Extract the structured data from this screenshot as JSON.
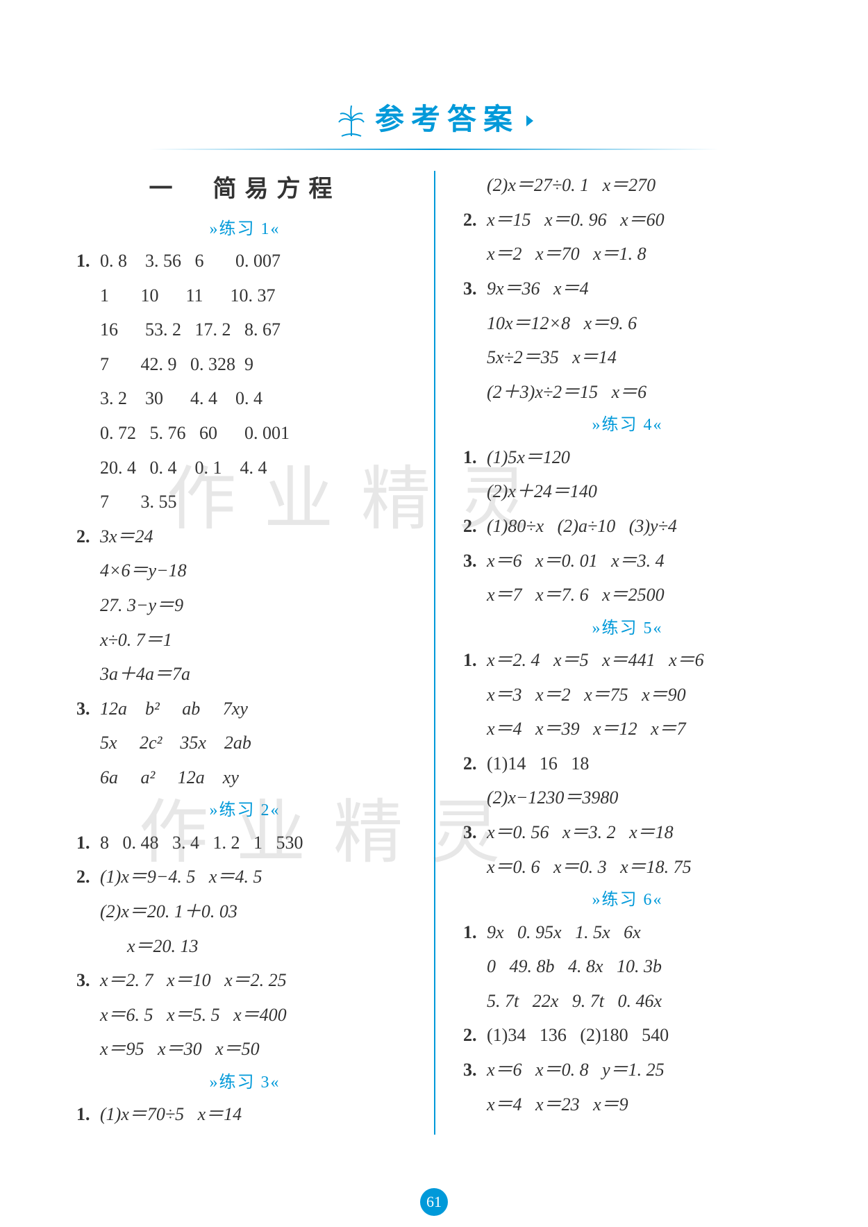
{
  "header": {
    "title": "参考答案",
    "underline_color": "#0099d9"
  },
  "pageNumber": "61",
  "watermark": "作业精灵",
  "leftColumn": {
    "sectionTitle": "一　简易方程",
    "blocks": [
      {
        "type": "exercise",
        "label": "»练习 1«"
      },
      {
        "type": "line",
        "num": "1.",
        "text": "0. 8    3. 56   6       0. 007"
      },
      {
        "type": "line",
        "num": "",
        "text": "1       10      11      10. 37"
      },
      {
        "type": "line",
        "num": "",
        "text": "16      53. 2   17. 2   8. 67"
      },
      {
        "type": "line",
        "num": "",
        "text": "7       42. 9   0. 328  9"
      },
      {
        "type": "line",
        "num": "",
        "text": "3. 2    30      4. 4    0. 4"
      },
      {
        "type": "line",
        "num": "",
        "text": "0. 72   5. 76   60      0. 001"
      },
      {
        "type": "line",
        "num": "",
        "text": "20. 4   0. 4    0. 1    4. 4"
      },
      {
        "type": "line",
        "num": "",
        "text": "7       3. 55"
      },
      {
        "type": "line",
        "num": "2.",
        "text": "3x＝24",
        "italic": true
      },
      {
        "type": "line",
        "num": "",
        "text": "4×6＝y−18",
        "italic": true
      },
      {
        "type": "line",
        "num": "",
        "text": "27. 3−y＝9",
        "italic": true
      },
      {
        "type": "line",
        "num": "",
        "text": "x÷0. 7＝1",
        "italic": true
      },
      {
        "type": "line",
        "num": "",
        "text": "3a＋4a＝7a",
        "italic": true
      },
      {
        "type": "line",
        "num": "3.",
        "text": "12a    b²     ab     7xy",
        "italic": true
      },
      {
        "type": "line",
        "num": "",
        "text": "5x     2c²    35x    2ab",
        "italic": true
      },
      {
        "type": "line",
        "num": "",
        "text": "6a     a²     12a    xy",
        "italic": true
      },
      {
        "type": "exercise",
        "label": "»练习 2«"
      },
      {
        "type": "line",
        "num": "1.",
        "text": "8   0. 48   3. 4   1. 2   1   530"
      },
      {
        "type": "line",
        "num": "2.",
        "text": "(1)x＝9−4. 5   x＝4. 5",
        "italic": true
      },
      {
        "type": "line",
        "num": "",
        "text": "(2)x＝20. 1＋0. 03",
        "italic": true
      },
      {
        "type": "line",
        "num": "",
        "text": "      x＝20. 13",
        "italic": true
      },
      {
        "type": "line",
        "num": "3.",
        "text": "x＝2. 7   x＝10   x＝2. 25",
        "italic": true
      },
      {
        "type": "line",
        "num": "",
        "text": "x＝6. 5   x＝5. 5   x＝400",
        "italic": true
      },
      {
        "type": "line",
        "num": "",
        "text": "x＝95   x＝30   x＝50",
        "italic": true
      },
      {
        "type": "exercise",
        "label": "»练习 3«"
      },
      {
        "type": "line",
        "num": "1.",
        "text": "(1)x＝70÷5   x＝14",
        "italic": true
      }
    ]
  },
  "rightColumn": {
    "blocks": [
      {
        "type": "line",
        "num": "",
        "text": "(2)x＝27÷0. 1   x＝270",
        "italic": true
      },
      {
        "type": "line",
        "num": "2.",
        "text": "x＝15   x＝0. 96   x＝60",
        "italic": true
      },
      {
        "type": "line",
        "num": "",
        "text": "x＝2   x＝70   x＝1. 8",
        "italic": true
      },
      {
        "type": "line",
        "num": "3.",
        "text": "9x＝36   x＝4",
        "italic": true
      },
      {
        "type": "line",
        "num": "",
        "text": "10x＝12×8   x＝9. 6",
        "italic": true
      },
      {
        "type": "line",
        "num": "",
        "text": "5x÷2＝35   x＝14",
        "italic": true
      },
      {
        "type": "line",
        "num": "",
        "text": "(2＋3)x÷2＝15   x＝6",
        "italic": true
      },
      {
        "type": "exercise",
        "label": "»练习 4«"
      },
      {
        "type": "line",
        "num": "1.",
        "text": "(1)5x＝120",
        "italic": true
      },
      {
        "type": "line",
        "num": "",
        "text": "(2)x＋24＝140",
        "italic": true
      },
      {
        "type": "line",
        "num": "2.",
        "text": "(1)80÷x   (2)a÷10   (3)y÷4",
        "italic": true
      },
      {
        "type": "line",
        "num": "3.",
        "text": "x＝6   x＝0. 01   x＝3. 4",
        "italic": true
      },
      {
        "type": "line",
        "num": "",
        "text": "x＝7   x＝7. 6   x＝2500",
        "italic": true
      },
      {
        "type": "exercise",
        "label": "»练习 5«"
      },
      {
        "type": "line",
        "num": "1.",
        "text": "x＝2. 4   x＝5   x＝441   x＝6",
        "italic": true
      },
      {
        "type": "line",
        "num": "",
        "text": "x＝3   x＝2   x＝75   x＝90",
        "italic": true
      },
      {
        "type": "line",
        "num": "",
        "text": "x＝4   x＝39   x＝12   x＝7",
        "italic": true
      },
      {
        "type": "line",
        "num": "2.",
        "text": "(1)14   16   18"
      },
      {
        "type": "line",
        "num": "",
        "text": "(2)x−1230＝3980",
        "italic": true
      },
      {
        "type": "line",
        "num": "3.",
        "text": "x＝0. 56   x＝3. 2   x＝18",
        "italic": true
      },
      {
        "type": "line",
        "num": "",
        "text": "x＝0. 6   x＝0. 3   x＝18. 75",
        "italic": true
      },
      {
        "type": "exercise",
        "label": "»练习 6«"
      },
      {
        "type": "line",
        "num": "1.",
        "text": "9x   0. 95x   1. 5x   6x",
        "italic": true
      },
      {
        "type": "line",
        "num": "",
        "text": "0   49. 8b   4. 8x   10. 3b",
        "italic": true
      },
      {
        "type": "line",
        "num": "",
        "text": "5. 7t   22x   9. 7t   0. 46x",
        "italic": true
      },
      {
        "type": "line",
        "num": "2.",
        "text": "(1)34   136   (2)180   540"
      },
      {
        "type": "line",
        "num": "3.",
        "text": "x＝6   x＝0. 8   y＝1. 25",
        "italic": true
      },
      {
        "type": "line",
        "num": "",
        "text": "x＝4   x＝23   x＝9",
        "italic": true
      }
    ]
  },
  "colors": {
    "accent": "#0099d9",
    "text": "#333333",
    "background": "#ffffff"
  }
}
